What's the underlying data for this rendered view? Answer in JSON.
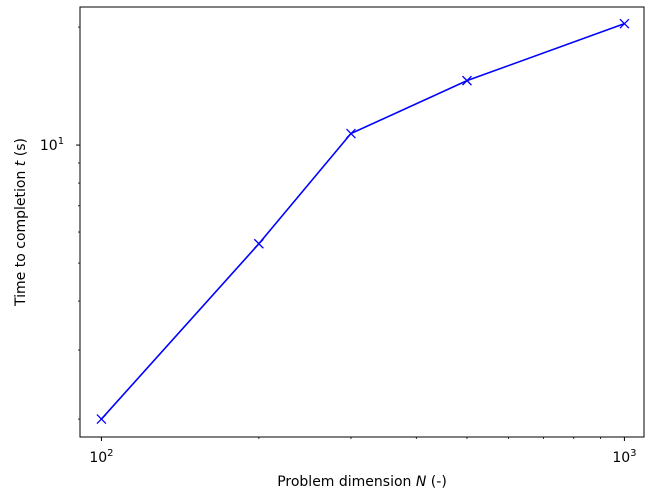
{
  "chart_data": {
    "type": "line",
    "title": "",
    "xlabel": "Problem dimension N (-)",
    "xlabel_parts": {
      "before": "Problem dimension ",
      "var": "N",
      "after": " (-)"
    },
    "ylabel": "Time to completion t (s)",
    "ylabel_parts": {
      "before": "Time to completion ",
      "var": "t",
      "after": " (s)"
    },
    "xscale": "log",
    "yscale": "log",
    "xlim": [
      91,
      1090
    ],
    "ylim": [
      1.8,
      22.5
    ],
    "x_major_ticks": [
      {
        "value": 100,
        "base": "10",
        "exp": "2"
      },
      {
        "value": 1000,
        "base": "10",
        "exp": "3"
      }
    ],
    "y_major_ticks": [
      {
        "value": 10,
        "base": "10",
        "exp": "1"
      }
    ],
    "grid": false,
    "series": [
      {
        "color": "#0000ff",
        "marker": "x",
        "x": [
          100,
          200,
          300,
          500,
          1000
        ],
        "y": [
          2.0,
          5.6,
          10.7,
          14.6,
          20.4
        ]
      }
    ]
  }
}
